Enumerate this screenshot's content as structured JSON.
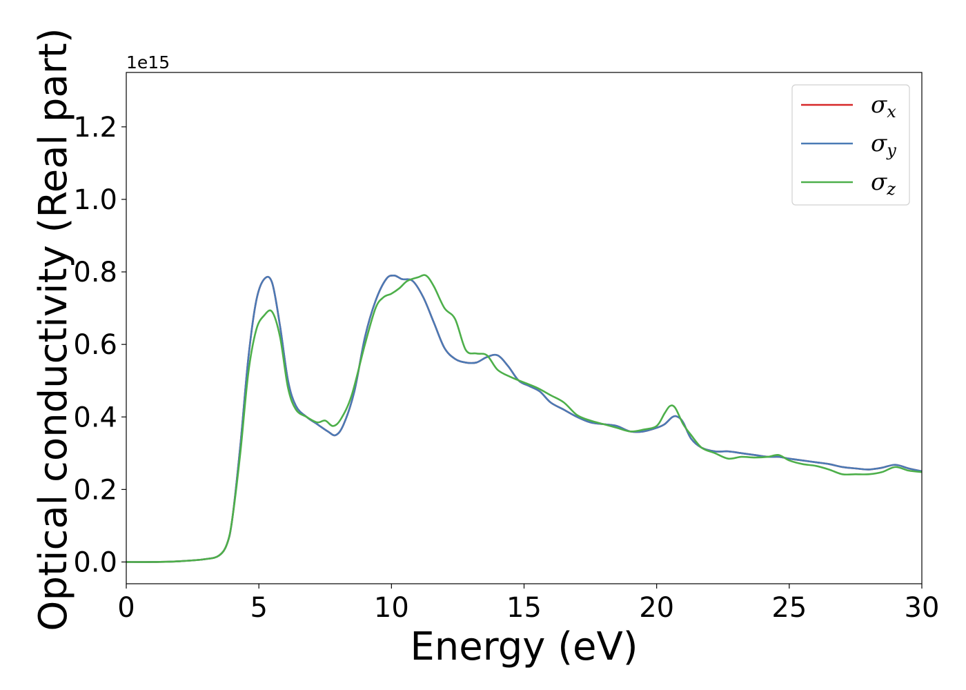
{
  "chart_data": {
    "type": "line",
    "xlabel": "Energy (eV)",
    "ylabel": "Optical conductivity (Real part)",
    "y_offset_label": "1e15",
    "xlim": [
      0,
      30
    ],
    "ylim": [
      -0.06,
      1.35
    ],
    "x_ticks": [
      0,
      5,
      10,
      15,
      20,
      25,
      30
    ],
    "x_tick_labels": [
      "0",
      "5",
      "10",
      "15",
      "20",
      "25",
      "30"
    ],
    "y_ticks": [
      0.0,
      0.2,
      0.4,
      0.6,
      0.8,
      1.0,
      1.2
    ],
    "y_tick_labels": [
      "0.0",
      "0.2",
      "0.4",
      "0.6",
      "0.8",
      "1.0",
      "1.2"
    ],
    "grid": false,
    "legend_position": "top-right",
    "series": [
      {
        "name": "σx",
        "symbol": "σ",
        "subscript": "x",
        "color": "#d62728",
        "x": [
          0,
          1,
          2,
          3,
          3.5,
          3.8,
          4.0,
          4.3,
          4.6,
          4.9,
          5.2,
          5.5,
          5.8,
          6.1,
          6.4,
          6.8,
          7.2,
          7.6,
          7.9,
          8.2,
          8.6,
          9.0,
          9.4,
          9.8,
          10.1,
          10.4,
          10.8,
          11.2,
          11.6,
          12.0,
          12.4,
          12.8,
          13.2,
          13.6,
          14.0,
          14.4,
          14.8,
          15.2,
          15.6,
          16.0,
          16.5,
          17.0,
          17.5,
          18.0,
          18.5,
          19.0,
          19.5,
          20.0,
          20.3,
          20.6,
          20.8,
          21.0,
          21.3,
          21.7,
          22.2,
          22.7,
          23.2,
          23.7,
          24.2,
          24.6,
          25.0,
          25.5,
          26.0,
          26.5,
          27.0,
          27.5,
          28.0,
          28.5,
          29.0,
          29.5,
          30.0
        ],
        "y": [
          0.0,
          0.0,
          0.002,
          0.008,
          0.018,
          0.05,
          0.12,
          0.32,
          0.56,
          0.72,
          0.78,
          0.77,
          0.65,
          0.5,
          0.43,
          0.4,
          0.38,
          0.36,
          0.35,
          0.38,
          0.47,
          0.62,
          0.72,
          0.78,
          0.79,
          0.78,
          0.775,
          0.73,
          0.66,
          0.59,
          0.56,
          0.55,
          0.55,
          0.565,
          0.57,
          0.54,
          0.5,
          0.485,
          0.47,
          0.44,
          0.42,
          0.4,
          0.385,
          0.38,
          0.375,
          0.36,
          0.36,
          0.37,
          0.38,
          0.4,
          0.4,
          0.385,
          0.34,
          0.315,
          0.305,
          0.305,
          0.3,
          0.295,
          0.29,
          0.29,
          0.285,
          0.28,
          0.275,
          0.27,
          0.262,
          0.258,
          0.255,
          0.26,
          0.268,
          0.258,
          0.25
        ]
      },
      {
        "name": "σy",
        "symbol": "σ",
        "subscript": "y",
        "color": "#4a7ab5",
        "x": [
          0,
          1,
          2,
          3,
          3.5,
          3.8,
          4.0,
          4.3,
          4.6,
          4.9,
          5.2,
          5.5,
          5.8,
          6.1,
          6.4,
          6.8,
          7.2,
          7.6,
          7.9,
          8.2,
          8.6,
          9.0,
          9.4,
          9.8,
          10.1,
          10.4,
          10.8,
          11.2,
          11.6,
          12.0,
          12.4,
          12.8,
          13.2,
          13.6,
          14.0,
          14.4,
          14.8,
          15.2,
          15.6,
          16.0,
          16.5,
          17.0,
          17.5,
          18.0,
          18.5,
          19.0,
          19.5,
          20.0,
          20.3,
          20.6,
          20.8,
          21.0,
          21.3,
          21.7,
          22.2,
          22.7,
          23.2,
          23.7,
          24.2,
          24.6,
          25.0,
          25.5,
          26.0,
          26.5,
          27.0,
          27.5,
          28.0,
          28.5,
          29.0,
          29.5,
          30.0
        ],
        "y": [
          0.0,
          0.0,
          0.002,
          0.008,
          0.018,
          0.05,
          0.12,
          0.32,
          0.56,
          0.72,
          0.78,
          0.77,
          0.65,
          0.5,
          0.43,
          0.4,
          0.38,
          0.36,
          0.35,
          0.38,
          0.47,
          0.62,
          0.72,
          0.78,
          0.79,
          0.78,
          0.775,
          0.73,
          0.66,
          0.59,
          0.56,
          0.55,
          0.55,
          0.565,
          0.57,
          0.54,
          0.5,
          0.485,
          0.47,
          0.44,
          0.42,
          0.4,
          0.385,
          0.38,
          0.375,
          0.36,
          0.36,
          0.37,
          0.38,
          0.4,
          0.4,
          0.385,
          0.34,
          0.315,
          0.305,
          0.305,
          0.3,
          0.295,
          0.29,
          0.29,
          0.285,
          0.28,
          0.275,
          0.27,
          0.262,
          0.258,
          0.255,
          0.26,
          0.268,
          0.258,
          0.25
        ]
      },
      {
        "name": "σz",
        "symbol": "σ",
        "subscript": "z",
        "color": "#4daf4a",
        "x": [
          0,
          1,
          2,
          3,
          3.5,
          3.8,
          4.0,
          4.3,
          4.6,
          4.9,
          5.2,
          5.5,
          5.8,
          6.1,
          6.4,
          6.8,
          7.2,
          7.5,
          7.8,
          8.1,
          8.5,
          9.0,
          9.4,
          9.7,
          10.0,
          10.3,
          10.6,
          11.0,
          11.3,
          11.6,
          12.0,
          12.4,
          12.8,
          13.2,
          13.6,
          14.0,
          14.5,
          15.0,
          15.5,
          16.0,
          16.5,
          17.0,
          17.5,
          18.0,
          18.5,
          19.0,
          19.5,
          20.0,
          20.3,
          20.5,
          20.7,
          21.0,
          21.3,
          21.7,
          22.2,
          22.7,
          23.2,
          23.7,
          24.2,
          24.6,
          25.0,
          25.5,
          26.0,
          26.5,
          27.0,
          27.5,
          28.0,
          28.5,
          29.0,
          29.5,
          30.0
        ],
        "y": [
          0.0,
          0.0,
          0.002,
          0.008,
          0.018,
          0.05,
          0.12,
          0.3,
          0.52,
          0.64,
          0.68,
          0.69,
          0.62,
          0.48,
          0.42,
          0.4,
          0.385,
          0.39,
          0.375,
          0.395,
          0.46,
          0.6,
          0.7,
          0.73,
          0.74,
          0.755,
          0.775,
          0.785,
          0.79,
          0.76,
          0.7,
          0.67,
          0.585,
          0.575,
          0.57,
          0.53,
          0.51,
          0.495,
          0.48,
          0.46,
          0.44,
          0.405,
          0.39,
          0.38,
          0.37,
          0.36,
          0.365,
          0.375,
          0.41,
          0.43,
          0.425,
          0.38,
          0.35,
          0.315,
          0.3,
          0.285,
          0.29,
          0.288,
          0.29,
          0.295,
          0.28,
          0.27,
          0.265,
          0.255,
          0.242,
          0.242,
          0.242,
          0.248,
          0.262,
          0.252,
          0.248
        ]
      }
    ]
  }
}
